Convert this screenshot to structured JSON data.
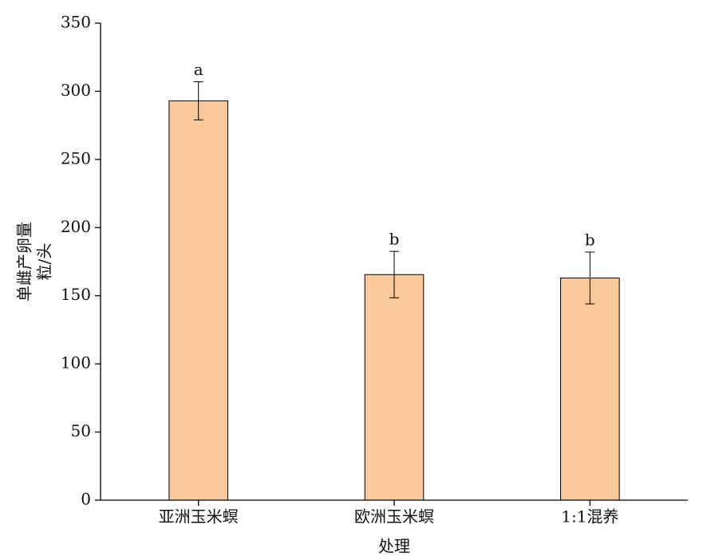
{
  "chart_data": {
    "type": "bar",
    "y_label": [
      "单雌产卵量",
      "粒/头"
    ],
    "x_label": "处理",
    "categories": [
      "亚洲玉米螟",
      "欧洲玉米螟",
      "1:1混养"
    ],
    "values": [
      293,
      165.5,
      163
    ],
    "errors": [
      14,
      17,
      19
    ],
    "letters": [
      "a",
      "b",
      "b"
    ],
    "color": "#f9c89b",
    "ylim": [
      0,
      350
    ],
    "yticks": [
      0,
      50,
      100,
      150,
      200,
      250,
      300,
      350
    ],
    "grid": false
  }
}
